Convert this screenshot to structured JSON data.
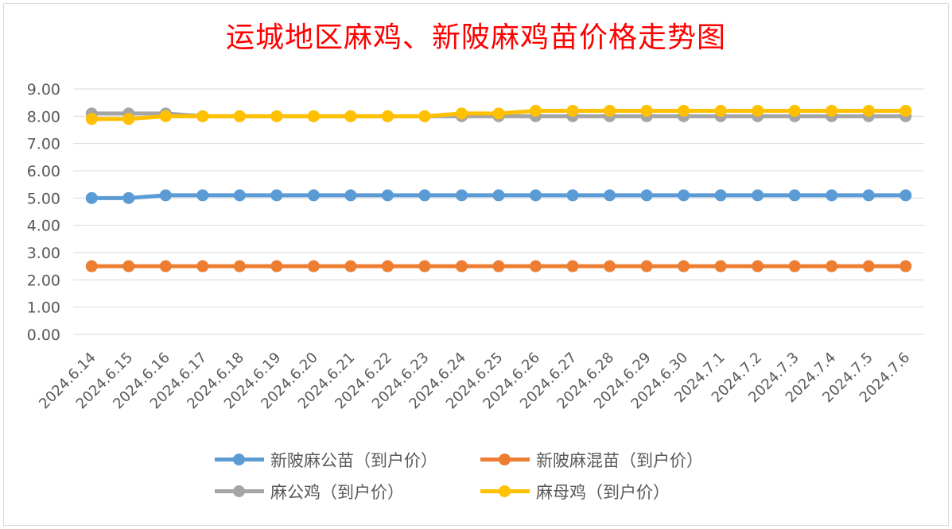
{
  "chart_data": {
    "type": "line",
    "title": "运城地区麻鸡、新陂麻鸡苗价格走势图",
    "xlabel": "",
    "ylabel": "",
    "ylim": [
      0,
      9
    ],
    "y_ticks": [
      "0.00",
      "1.00",
      "2.00",
      "3.00",
      "4.00",
      "5.00",
      "6.00",
      "7.00",
      "8.00",
      "9.00"
    ],
    "grid": true,
    "legend_position": "bottom",
    "categories": [
      "2024.6.14",
      "2024.6.15",
      "2024.6.16",
      "2024.6.17",
      "2024.6.18",
      "2024.6.19",
      "2024.6.20",
      "2024.6.21",
      "2024.6.22",
      "2024.6.23",
      "2024.6.24",
      "2024.6.25",
      "2024.6.26",
      "2024.6.27",
      "2024.6.28",
      "2024.6.29",
      "2024.6.30",
      "2024.7.1",
      "2024.7.2",
      "2024.7.3",
      "2024.7.4",
      "2024.7.5",
      "2024.7.6"
    ],
    "series": [
      {
        "name": "新陂麻公苗（到户价）",
        "color": "#5b9bd5",
        "values": [
          5.0,
          5.0,
          5.1,
          5.1,
          5.1,
          5.1,
          5.1,
          5.1,
          5.1,
          5.1,
          5.1,
          5.1,
          5.1,
          5.1,
          5.1,
          5.1,
          5.1,
          5.1,
          5.1,
          5.1,
          5.1,
          5.1,
          5.1
        ]
      },
      {
        "name": "新陂麻混苗（到户价）",
        "color": "#ed7d31",
        "values": [
          2.5,
          2.5,
          2.5,
          2.5,
          2.5,
          2.5,
          2.5,
          2.5,
          2.5,
          2.5,
          2.5,
          2.5,
          2.5,
          2.5,
          2.5,
          2.5,
          2.5,
          2.5,
          2.5,
          2.5,
          2.5,
          2.5,
          2.5
        ]
      },
      {
        "name": "麻公鸡（到户价）",
        "color": "#a5a5a5",
        "values": [
          8.1,
          8.1,
          8.1,
          8.0,
          8.0,
          8.0,
          8.0,
          8.0,
          8.0,
          8.0,
          8.0,
          8.0,
          8.0,
          8.0,
          8.0,
          8.0,
          8.0,
          8.0,
          8.0,
          8.0,
          8.0,
          8.0,
          8.0
        ]
      },
      {
        "name": "麻母鸡（到户价）",
        "color": "#ffc000",
        "values": [
          7.9,
          7.9,
          8.0,
          8.0,
          8.0,
          8.0,
          8.0,
          8.0,
          8.0,
          8.0,
          8.1,
          8.1,
          8.2,
          8.2,
          8.2,
          8.2,
          8.2,
          8.2,
          8.2,
          8.2,
          8.2,
          8.2,
          8.2
        ]
      }
    ]
  }
}
